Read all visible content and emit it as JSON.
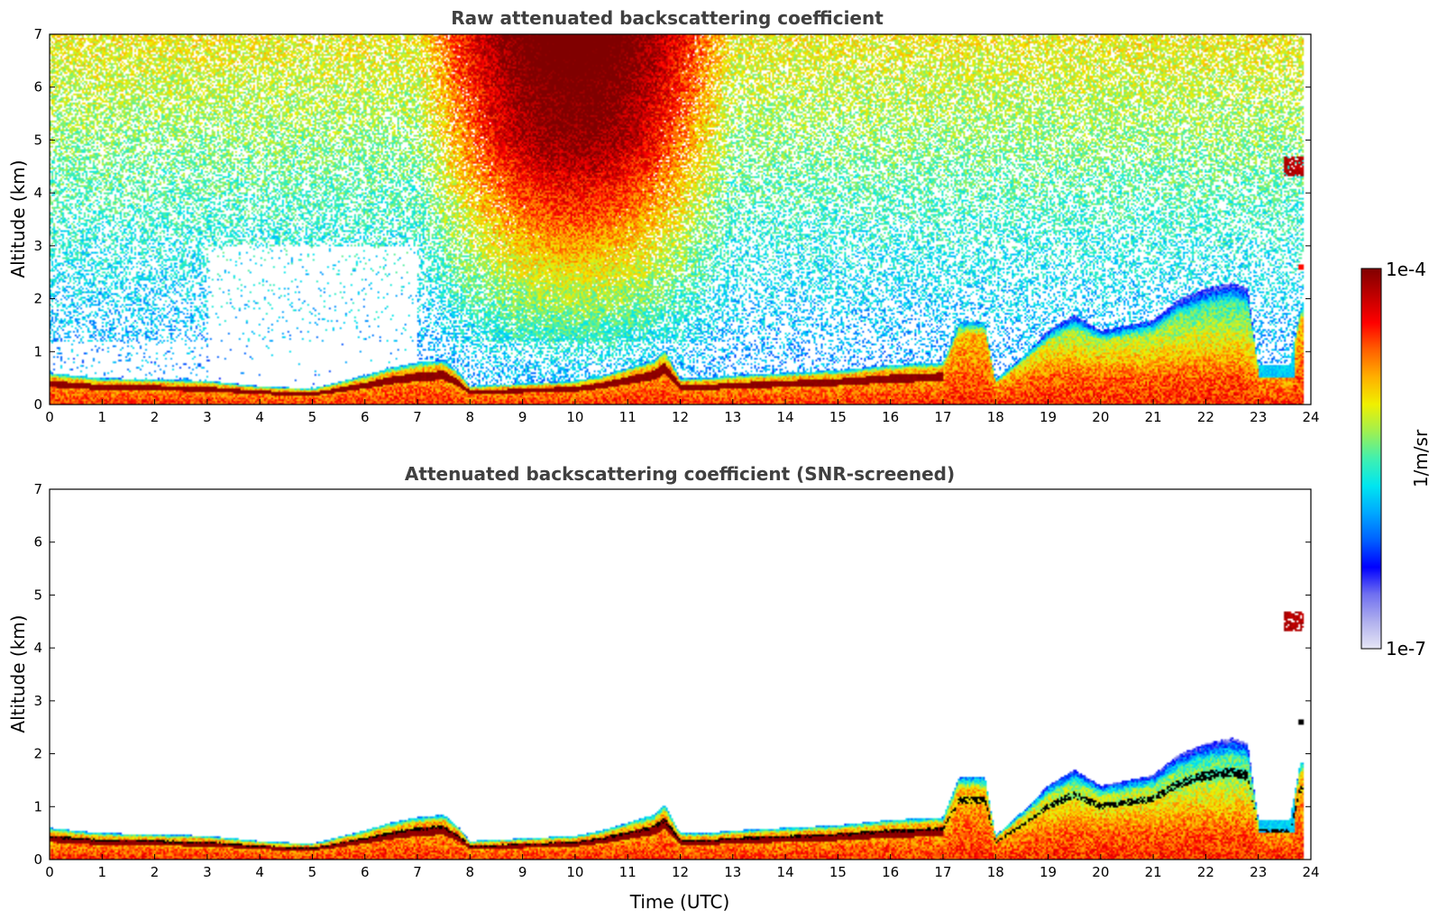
{
  "chart_data": [
    {
      "type": "heatmap",
      "title": "Raw attenuated backscattering coefficient",
      "xlabel": "",
      "ylabel": "Altitude (km)",
      "xlim": [
        0,
        24
      ],
      "ylim": [
        0,
        7
      ],
      "xticks": [
        "0",
        "1",
        "2",
        "3",
        "4",
        "5",
        "6",
        "7",
        "8",
        "9",
        "10",
        "11",
        "12",
        "13",
        "14",
        "15",
        "16",
        "17",
        "18",
        "19",
        "20",
        "21",
        "22",
        "23",
        "24"
      ],
      "yticks": [
        "0",
        "1",
        "2",
        "3",
        "4",
        "5",
        "6",
        "7"
      ],
      "screened": false
    },
    {
      "type": "heatmap",
      "title": "Attenuated backscattering coefficient (SNR-screened)",
      "xlabel": "Time (UTC)",
      "ylabel": "Altitude (km)",
      "xlim": [
        0,
        24
      ],
      "ylim": [
        0,
        7
      ],
      "xticks": [
        "0",
        "1",
        "2",
        "3",
        "4",
        "5",
        "6",
        "7",
        "8",
        "9",
        "10",
        "11",
        "12",
        "13",
        "14",
        "15",
        "16",
        "17",
        "18",
        "19",
        "20",
        "21",
        "22",
        "23",
        "24"
      ],
      "yticks": [
        "0",
        "1",
        "2",
        "3",
        "4",
        "5",
        "6",
        "7"
      ],
      "screened": true
    }
  ],
  "colorbar": {
    "label": "1/m/sr",
    "max_label": "1e-4",
    "min_label": "1e-7",
    "scale": "log",
    "colormap": [
      "#e6e6f5",
      "#b0b0ee",
      "#7070f0",
      "#0000ff",
      "#0060ff",
      "#00a8ff",
      "#00e6f0",
      "#40f0b0",
      "#a0f050",
      "#f0f000",
      "#ffb000",
      "#ff6000",
      "#ff0000",
      "#c00000",
      "#800000"
    ]
  },
  "boundary_layer_top_km": [
    [
      0,
      0.6
    ],
    [
      0.5,
      0.55
    ],
    [
      1,
      0.5
    ],
    [
      2,
      0.48
    ],
    [
      3,
      0.45
    ],
    [
      4,
      0.35
    ],
    [
      5,
      0.3
    ],
    [
      6,
      0.55
    ],
    [
      6.5,
      0.7
    ],
    [
      7,
      0.8
    ],
    [
      7.5,
      0.85
    ],
    [
      7.8,
      0.6
    ],
    [
      8,
      0.35
    ],
    [
      9,
      0.4
    ],
    [
      10,
      0.45
    ],
    [
      10.5,
      0.55
    ],
    [
      11,
      0.7
    ],
    [
      11.5,
      0.85
    ],
    [
      11.7,
      1.05
    ],
    [
      12,
      0.5
    ],
    [
      12.5,
      0.5
    ],
    [
      13,
      0.55
    ],
    [
      14,
      0.6
    ],
    [
      15,
      0.65
    ],
    [
      16,
      0.75
    ],
    [
      17,
      0.8
    ],
    [
      17.3,
      1.55
    ],
    [
      17.8,
      1.55
    ],
    [
      18,
      0.45
    ],
    [
      18.5,
      0.9
    ],
    [
      19,
      1.4
    ],
    [
      19.5,
      1.7
    ],
    [
      20,
      1.4
    ],
    [
      20.5,
      1.5
    ],
    [
      21,
      1.6
    ],
    [
      21.5,
      2.0
    ],
    [
      22,
      2.2
    ],
    [
      22.5,
      2.3
    ],
    [
      22.8,
      2.2
    ],
    [
      23,
      0.75
    ],
    [
      23.6,
      0.75
    ],
    [
      23.8,
      1.85
    ],
    [
      24,
      1.85
    ]
  ],
  "features": {
    "elevated_aerosol_layer": {
      "time_h": [
        23.5,
        23.9
      ],
      "altitude_km": [
        4.3,
        4.7
      ]
    },
    "small_layer": {
      "time_h": [
        23.75,
        23.95
      ],
      "altitude_km": [
        2.55,
        2.65
      ]
    },
    "noisy_high_signal_window_h": [
      7,
      13
    ]
  }
}
